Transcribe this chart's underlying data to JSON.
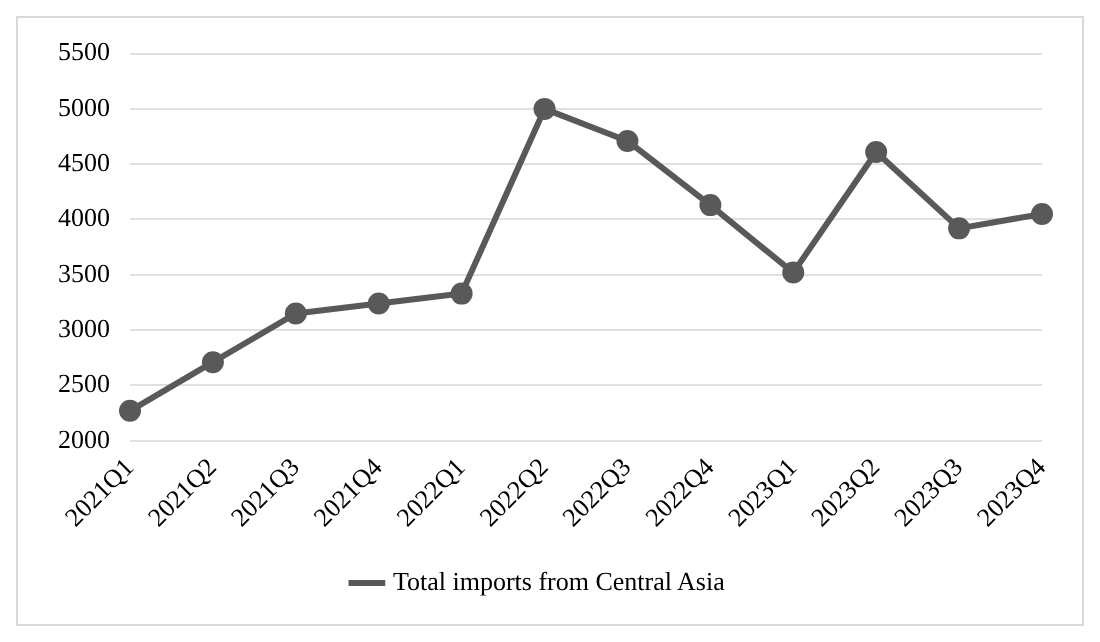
{
  "chart_data": {
    "type": "line",
    "categories": [
      "2021Q1",
      "2021Q2",
      "2021Q3",
      "2021Q4",
      "2022Q1",
      "2022Q2",
      "2022Q3",
      "2022Q4",
      "2023Q1",
      "2023Q2",
      "2023Q3",
      "2023Q4"
    ],
    "series": [
      {
        "name": "Total imports from Central Asia",
        "color": "#595959",
        "values": [
          2270,
          2710,
          3150,
          3240,
          3330,
          5000,
          4710,
          4130,
          3520,
          4610,
          3920,
          4050
        ]
      }
    ],
    "ylim": [
      2000,
      5500
    ],
    "yticks": [
      2000,
      2500,
      3000,
      3500,
      4000,
      4500,
      5000,
      5500
    ],
    "grid": "y",
    "legend": "bottom",
    "marker": "circle",
    "line_style": "solid"
  }
}
